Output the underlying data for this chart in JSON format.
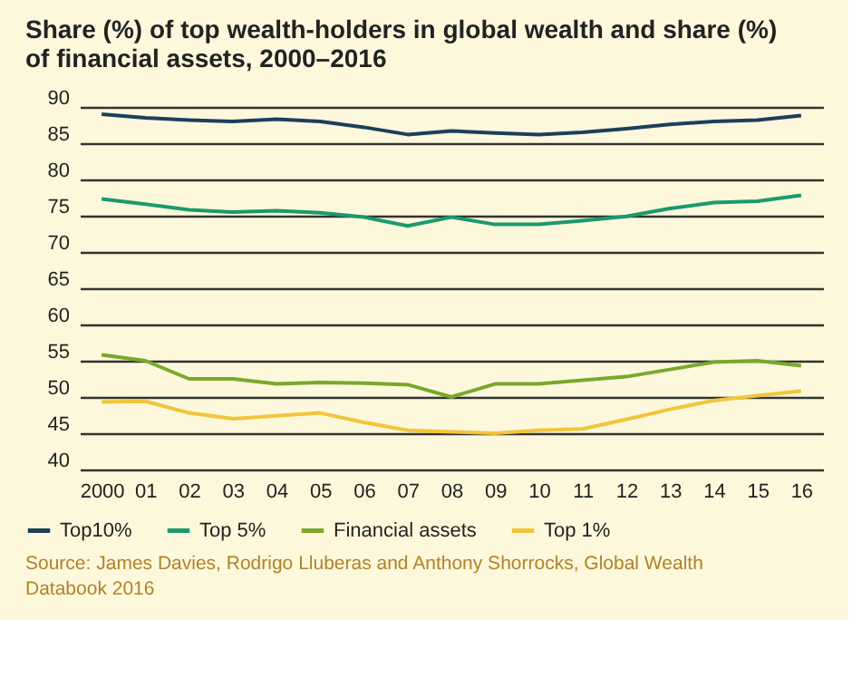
{
  "chart_data": {
    "type": "line",
    "title": "Share (%) of top wealth-holders in global wealth and share (%) of financial assets, 2000–2016",
    "categories": [
      "2000",
      "01",
      "02",
      "03",
      "04",
      "05",
      "06",
      "07",
      "08",
      "09",
      "10",
      "11",
      "12",
      "13",
      "14",
      "15",
      "16"
    ],
    "series": [
      {
        "name": "Top10%",
        "color": "#1c3f5a",
        "values": [
          89,
          88.5,
          88.2,
          88,
          88.3,
          88,
          87.2,
          86.2,
          86.7,
          86.4,
          86.2,
          86.5,
          87,
          87.6,
          88,
          88.2,
          88.8
        ]
      },
      {
        "name": "Top 5%",
        "color": "#1a9a6b",
        "values": [
          77.3,
          76.6,
          75.8,
          75.5,
          75.7,
          75.4,
          74.8,
          73.6,
          74.8,
          73.8,
          73.8,
          74.3,
          74.9,
          76,
          76.8,
          77,
          77.8
        ]
      },
      {
        "name": "Financial assets",
        "color": "#7aa82a",
        "values": [
          55.8,
          55,
          52.5,
          52.5,
          51.8,
          52,
          51.9,
          51.7,
          50,
          51.8,
          51.8,
          52.3,
          52.8,
          53.8,
          54.8,
          55,
          54.3
        ]
      },
      {
        "name": "Top 1%",
        "color": "#f2c53a",
        "values": [
          49.3,
          49.4,
          47.8,
          47,
          47.4,
          47.8,
          46.5,
          45.4,
          45.2,
          45,
          45.4,
          45.6,
          46.9,
          48.3,
          49.5,
          50.2,
          50.8
        ]
      }
    ],
    "ylim": [
      40,
      90
    ],
    "yticks": [
      40,
      45,
      50,
      55,
      60,
      65,
      70,
      75,
      80,
      85,
      90
    ],
    "grid": "y",
    "legend": "bottom",
    "marker": "none",
    "line_style": "solid",
    "annotations": [
      "Source: James Davies, Rodrigo Lluberas and Anthony Shorrocks, Global Wealth Databook 2016"
    ]
  }
}
